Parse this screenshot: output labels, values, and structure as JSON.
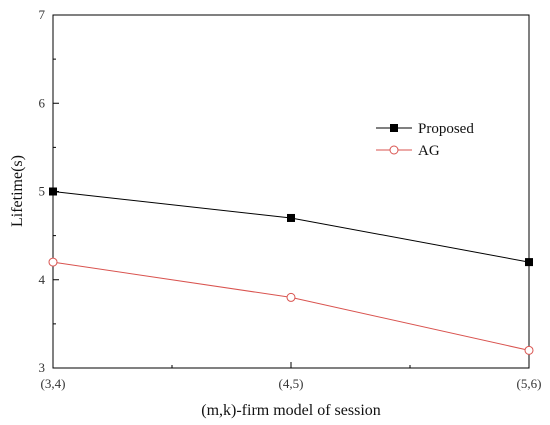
{
  "chart_data": {
    "type": "line",
    "categories": [
      "(3,4)",
      "(4,5)",
      "(5,6)"
    ],
    "series": [
      {
        "name": "Proposed",
        "values": [
          5.0,
          4.7,
          4.2
        ],
        "color": "#000000",
        "marker": "filled-square"
      },
      {
        "name": "AG",
        "values": [
          4.2,
          3.8,
          3.2
        ],
        "color": "#d9534f",
        "marker": "hollow-circle"
      }
    ],
    "xlabel": "(m,k)-firm model of session",
    "ylabel": "Lifetime(s)",
    "ylim": [
      3,
      7
    ],
    "yticks": [
      3,
      4,
      5,
      6,
      7
    ],
    "grid": false,
    "legend_position": "upper-right"
  }
}
